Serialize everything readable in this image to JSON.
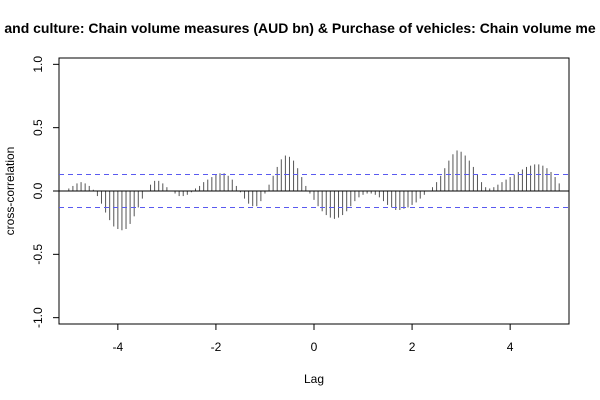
{
  "chart_data": {
    "type": "bar",
    "title": "and culture: Chain volume measures (AUD bn) & Purchase of vehicles: Chain volume me",
    "xlabel": "Lag",
    "ylabel": "cross-correlation",
    "xlim": [
      -5.2,
      5.2
    ],
    "ylim": [
      -1.05,
      1.05
    ],
    "x_ticks": [
      -4,
      -2,
      0,
      2,
      4
    ],
    "x_tick_labels": [
      "-4",
      "-2",
      "0",
      "2",
      "4"
    ],
    "y_ticks": [
      -1.0,
      -0.5,
      0.0,
      0.5,
      1.0
    ],
    "y_tick_labels": [
      "-1.0",
      "-0.5",
      "0.0",
      "0.5",
      "1.0"
    ],
    "confidence_limit": 0.13,
    "lag_step": 0.0833,
    "lags": [
      -5,
      -4.9167,
      -4.8333,
      -4.75,
      -4.6667,
      -4.5833,
      -4.5,
      -4.4167,
      -4.3333,
      -4.25,
      -4.1667,
      -4.0833,
      -4,
      -3.9167,
      -3.8333,
      -3.75,
      -3.6667,
      -3.5833,
      -3.5,
      -3.4167,
      -3.3333,
      -3.25,
      -3.1667,
      -3.0833,
      -3,
      -2.9167,
      -2.8333,
      -2.75,
      -2.6667,
      -2.5833,
      -2.5,
      -2.4167,
      -2.3333,
      -2.25,
      -2.1667,
      -2.0833,
      -2,
      -1.9167,
      -1.8333,
      -1.75,
      -1.6667,
      -1.5833,
      -1.5,
      -1.4167,
      -1.3333,
      -1.25,
      -1.1667,
      -1.0833,
      -1,
      -0.9167,
      -0.8333,
      -0.75,
      -0.6667,
      -0.5833,
      -0.5,
      -0.4167,
      -0.3333,
      -0.25,
      -0.1667,
      -0.0833,
      0,
      0.0833,
      0.1667,
      0.25,
      0.3333,
      0.4167,
      0.5,
      0.5833,
      0.6667,
      0.75,
      0.8333,
      0.9167,
      1,
      1.0833,
      1.1667,
      1.25,
      1.3333,
      1.4167,
      1.5,
      1.5833,
      1.6667,
      1.75,
      1.8333,
      1.9167,
      2,
      2.0833,
      2.1667,
      2.25,
      2.3333,
      2.4167,
      2.5,
      2.5833,
      2.6667,
      2.75,
      2.8333,
      2.9167,
      3,
      3.0833,
      3.1667,
      3.25,
      3.3333,
      3.4167,
      3.5,
      3.5833,
      3.6667,
      3.75,
      3.8333,
      3.9167,
      4,
      4.0833,
      4.1667,
      4.25,
      4.3333,
      4.4167,
      4.5,
      4.5833,
      4.6667,
      4.75,
      4.8333,
      4.9167,
      5
    ],
    "values": [
      0.02,
      0.04,
      0.06,
      0.07,
      0.06,
      0.04,
      0.01,
      -0.04,
      -0.1,
      -0.17,
      -0.23,
      -0.28,
      -0.3,
      -0.31,
      -0.3,
      -0.26,
      -0.2,
      -0.13,
      -0.06,
      0.0,
      0.05,
      0.08,
      0.08,
      0.06,
      0.03,
      0.0,
      -0.02,
      -0.04,
      -0.04,
      -0.03,
      -0.01,
      0.02,
      0.04,
      0.07,
      0.09,
      0.11,
      0.13,
      0.14,
      0.14,
      0.12,
      0.09,
      0.04,
      -0.01,
      -0.06,
      -0.1,
      -0.12,
      -0.12,
      -0.08,
      -0.02,
      0.05,
      0.12,
      0.19,
      0.25,
      0.28,
      0.27,
      0.24,
      0.18,
      0.11,
      0.04,
      -0.02,
      -0.07,
      -0.12,
      -0.16,
      -0.19,
      -0.21,
      -0.22,
      -0.21,
      -0.19,
      -0.16,
      -0.12,
      -0.08,
      -0.05,
      -0.03,
      -0.02,
      -0.02,
      -0.03,
      -0.05,
      -0.08,
      -0.11,
      -0.13,
      -0.15,
      -0.15,
      -0.14,
      -0.13,
      -0.11,
      -0.09,
      -0.06,
      -0.03,
      0.0,
      0.03,
      0.07,
      0.12,
      0.18,
      0.24,
      0.29,
      0.32,
      0.31,
      0.28,
      0.24,
      0.19,
      0.13,
      0.07,
      0.03,
      0.02,
      0.03,
      0.05,
      0.07,
      0.09,
      0.11,
      0.13,
      0.15,
      0.17,
      0.19,
      0.2,
      0.21,
      0.21,
      0.2,
      0.18,
      0.15,
      0.11,
      0.06
    ],
    "colors": {
      "bars": "#555555",
      "zero_line": "#000000",
      "confidence_lines": "#5a5af0",
      "axes": "#000000"
    }
  }
}
